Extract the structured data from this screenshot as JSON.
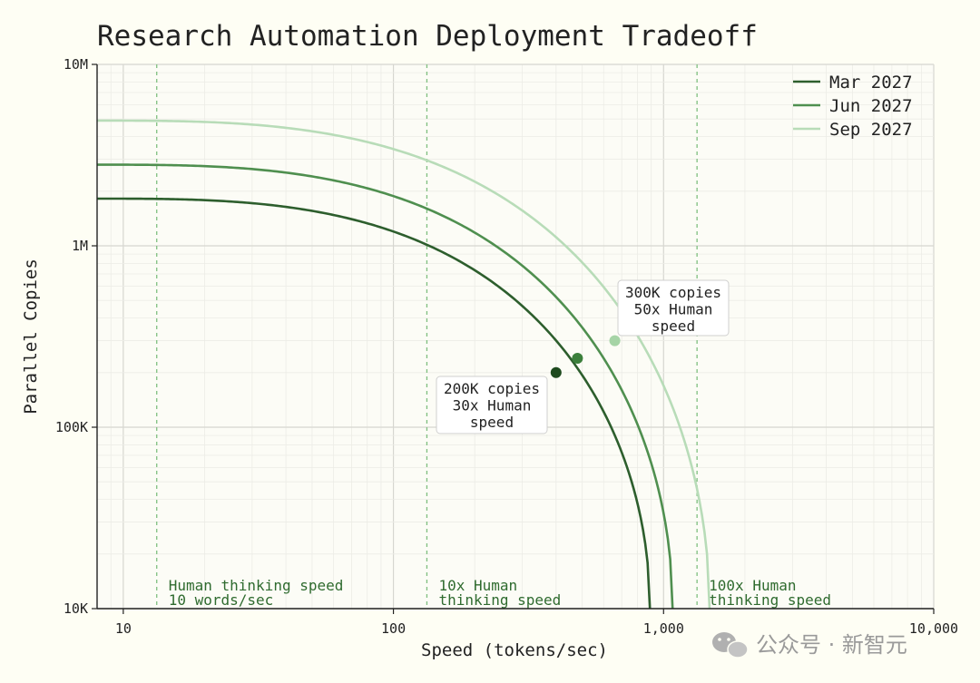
{
  "chart_data": {
    "type": "line",
    "title": "Research Automation Deployment Tradeoff",
    "xlabel": "Speed (tokens/sec)",
    "ylabel": "Parallel Copies",
    "x_scale": "log",
    "y_scale": "log",
    "xlim": [
      8,
      10000
    ],
    "ylim": [
      10000,
      10000000
    ],
    "x_ticks": [
      {
        "value": 10,
        "label": "10"
      },
      {
        "value": 100,
        "label": "100"
      },
      {
        "value": 1000,
        "label": "1,000"
      },
      {
        "value": 10000,
        "label": "10,000"
      }
    ],
    "y_ticks": [
      {
        "value": 10000,
        "label": "10K"
      },
      {
        "value": 100000,
        "label": "100K"
      },
      {
        "value": 1000000,
        "label": "1M"
      },
      {
        "value": 10000000,
        "label": "10M"
      }
    ],
    "grid": true,
    "legend_position": "top-right",
    "series": [
      {
        "name": "Mar 2027",
        "color": "#2d5e2d",
        "max_copies": 1820000,
        "max_speed": 890,
        "marker": {
          "x": 400,
          "y": 200000
        }
      },
      {
        "name": "Jun 2027",
        "color": "#4f8f4f",
        "max_copies": 2800000,
        "max_speed": 1080,
        "marker": {
          "x": 480,
          "y": 240000
        }
      },
      {
        "name": "Sep 2027",
        "color": "#b8dcb8",
        "max_copies": 4900000,
        "max_speed": 1480,
        "marker": {
          "x": 660,
          "y": 300000
        }
      }
    ],
    "reference_lines": [
      {
        "x": 13.3,
        "label_lines": [
          "Human thinking speed",
          "10 words/sec"
        ]
      },
      {
        "x": 133,
        "label_lines": [
          "10x Human",
          "thinking speed"
        ]
      },
      {
        "x": 1330,
        "label_lines": [
          "100x Human",
          "thinking speed"
        ]
      }
    ],
    "annotations": [
      {
        "series": "Mar 2027",
        "lines": [
          "200K copies",
          "30x Human",
          "speed"
        ]
      },
      {
        "series": "Sep 2027",
        "lines": [
          "300K copies",
          "50x Human",
          "speed"
        ]
      }
    ]
  },
  "watermark": {
    "text": "公众号 · 新智元",
    "icon": "wechat-icon"
  }
}
